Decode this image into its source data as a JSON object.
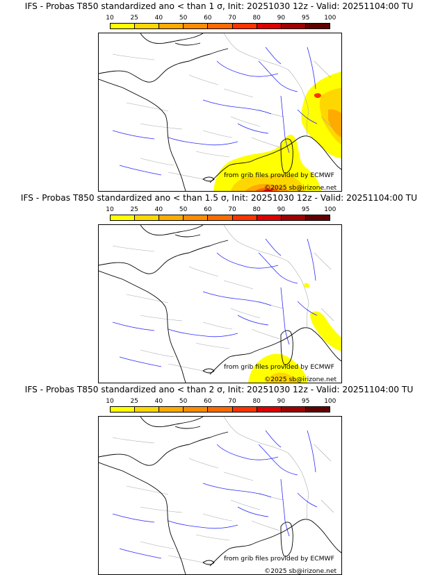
{
  "panels": [
    {
      "title": "IFS - Probas T850  standardized ano < than 1 σ, Init: 20251030 12z - Valid: 20251104:00 TU",
      "level": "1"
    },
    {
      "title": "IFS - Probas T850  standardized ano < than 1.5 σ, Init: 20251030 12z - Valid: 20251104:00 TU",
      "level": "1.5"
    },
    {
      "title": "IFS - Probas T850  standardized ano < than 2 σ, Init: 20251030 12z - Valid: 20251104:00 TU",
      "level": "2"
    }
  ],
  "legend": {
    "ticks": [
      "10",
      "25",
      "40",
      "50",
      "60",
      "70",
      "80",
      "90",
      "95",
      "100"
    ],
    "colors": [
      "#ffff00",
      "#ffd700",
      "#ffaa00",
      "#ff8c00",
      "#ff6a00",
      "#ff3300",
      "#dd0000",
      "#a00000",
      "#600000"
    ]
  },
  "credits": {
    "source": "from grib files provided by ECMWF",
    "copyright": "©2025 sb@irizone.net"
  },
  "map_colors": {
    "coast": "#000000",
    "rivers": "#2a2aff",
    "borders": "#aaaaaa"
  }
}
